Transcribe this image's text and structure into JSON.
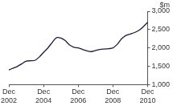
{
  "chart_data": {
    "type": "line",
    "ylabel": "$m",
    "categories": [
      "Dec 2002",
      null,
      null,
      null,
      null,
      null,
      null,
      null,
      "Dec 2004",
      null,
      null,
      null,
      null,
      null,
      null,
      null,
      "Dec 2006",
      null,
      null,
      null,
      null,
      null,
      null,
      null,
      "Dec 2008",
      null,
      null,
      null,
      null,
      null,
      null,
      null,
      "Dec 2010"
    ],
    "values": [
      1400,
      1450,
      1500,
      1570,
      1640,
      1650,
      1660,
      1750,
      1880,
      2000,
      2150,
      2280,
      2270,
      2200,
      2080,
      2020,
      2000,
      1960,
      1920,
      1900,
      1930,
      1960,
      1970,
      1980,
      2000,
      2100,
      2250,
      2340,
      2380,
      2420,
      2480,
      2580,
      2700
    ],
    "color": "#1c1c3c",
    "ylim": [
      1000,
      3000
    ],
    "yticks": [
      1000,
      1500,
      2000,
      2500,
      3000
    ],
    "grid": false
  }
}
